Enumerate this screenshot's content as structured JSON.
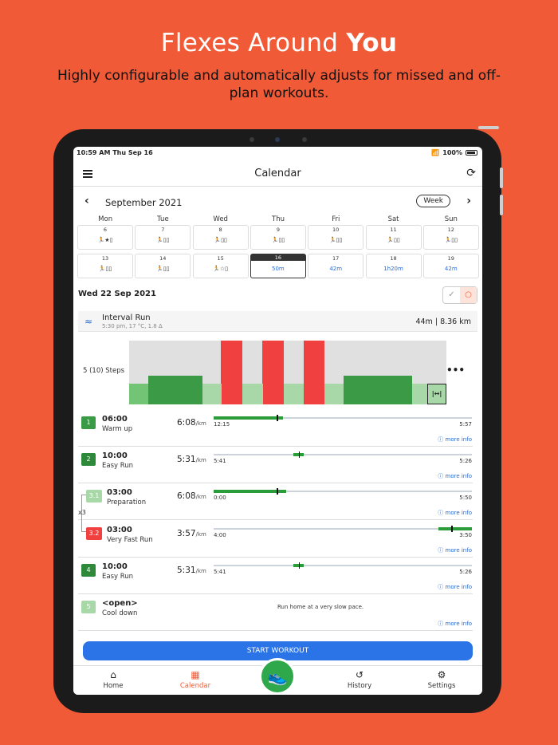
{
  "promo": {
    "title_plain": "Flexes Around ",
    "title_bold": "You",
    "subtitle": "Highly configurable and automatically adjusts for missed and off-plan workouts."
  },
  "status_bar": {
    "time": "10:59 AM   Thu Sep 16",
    "battery": "100%"
  },
  "nav": {
    "title": "Calendar"
  },
  "calendar": {
    "month": "September 2021",
    "view_button": "Week",
    "days_of_week": [
      "Mon",
      "Tue",
      "Wed",
      "Thu",
      "Fri",
      "Sat",
      "Sun"
    ],
    "week1": [
      "6",
      "7",
      "8",
      "9",
      "10",
      "11",
      "12"
    ],
    "week2": [
      "13",
      "14",
      "15",
      "16",
      "17",
      "18",
      "19"
    ],
    "week1_icons": [
      "🏃★▯",
      "🏃▯▯",
      "🏃▯▯",
      "🏃▯▯",
      "🏃▯▯",
      "🏃▯▯",
      "🏃▯▯"
    ],
    "week2_icons": [
      "🏃▯▯",
      "🏃▯▯",
      "🏃☆▯",
      "50m",
      "42m",
      "1h20m",
      "42m"
    ]
  },
  "day": {
    "date": "Wed 22 Sep 2021"
  },
  "workout": {
    "name": "Interval Run",
    "meta": "5:30 pm, 17 °C, 1.8 ∆",
    "duration": "44m",
    "distance": "8.36 km",
    "steps_label": "5 (10) Steps",
    "profile": [
      {
        "w": 0.06,
        "h": 0.33,
        "color": "#74c476"
      },
      {
        "w": 0.17,
        "h": 0.45,
        "color": "#3a9a45"
      },
      {
        "w": 0.06,
        "h": 0.33,
        "color": "#a8d8a8"
      },
      {
        "w": 0.065,
        "h": 1.0,
        "color": "#f04040"
      },
      {
        "w": 0.065,
        "h": 0.33,
        "color": "#a8d8a8"
      },
      {
        "w": 0.065,
        "h": 1.0,
        "color": "#f04040"
      },
      {
        "w": 0.065,
        "h": 0.33,
        "color": "#a8d8a8"
      },
      {
        "w": 0.065,
        "h": 1.0,
        "color": "#f04040"
      },
      {
        "w": 0.06,
        "h": 0.33,
        "color": "#a8d8a8"
      },
      {
        "w": 0.215,
        "h": 0.45,
        "color": "#3a9a45"
      },
      {
        "w": 0.065,
        "h": 0.33,
        "color": "#a8d8a8"
      }
    ],
    "steps": [
      {
        "badge": "1",
        "color": "#3a9a45",
        "time": "06:00",
        "name": "Warm up",
        "pace": "6:08",
        "unit": "/km",
        "min": "12:15",
        "max": "5:57",
        "fill_start": 0.0,
        "fill_end": 0.27,
        "tick": 0.245,
        "info": "more info"
      },
      {
        "badge": "2",
        "color": "#2e8a3a",
        "time": "10:00",
        "name": "Easy Run",
        "pace": "5:31",
        "unit": "/km",
        "min": "5:41",
        "max": "5:26",
        "fill_start": 0.31,
        "fill_end": 0.35,
        "tick": 0.33,
        "info": "more info"
      },
      {
        "badge": "3.1",
        "color": "#a8d8a8",
        "time": "03:00",
        "name": "Preparation",
        "pace": "6:08",
        "unit": "/km",
        "min": "0:00",
        "max": "5:50",
        "fill_start": 0.0,
        "fill_end": 0.28,
        "tick": 0.245,
        "info": "more info"
      },
      {
        "badge": "3.2",
        "color": "#f04040",
        "time": "03:00",
        "name": "Very Fast Run",
        "pace": "3:57",
        "unit": "/km",
        "min": "4:00",
        "max": "3:50",
        "fill_start": 0.87,
        "fill_end": 1.0,
        "tick": 0.92,
        "info": "more info"
      },
      {
        "badge": "4",
        "color": "#2e8a3a",
        "time": "10:00",
        "name": "Easy Run",
        "pace": "5:31",
        "unit": "/km",
        "min": "5:41",
        "max": "5:26",
        "fill_start": 0.31,
        "fill_end": 0.35,
        "tick": 0.33,
        "info": "more info"
      },
      {
        "badge": "5",
        "color": "#a8d8a8",
        "time": "<open>",
        "name": "Cool down",
        "pace": "",
        "unit": "",
        "min": "",
        "max": "",
        "fill_start": 0,
        "fill_end": 0,
        "tick": -1,
        "note": "Run home at a very slow pace.",
        "info": "more info"
      }
    ],
    "repeat": "x3",
    "start_button": "START WORKOUT"
  },
  "tabs": [
    {
      "label": "Home",
      "icon": "home-icon"
    },
    {
      "label": "Calendar",
      "icon": "calendar-icon"
    },
    {
      "label": "History",
      "icon": "history-icon"
    },
    {
      "label": "Settings",
      "icon": "gear-icon"
    }
  ]
}
